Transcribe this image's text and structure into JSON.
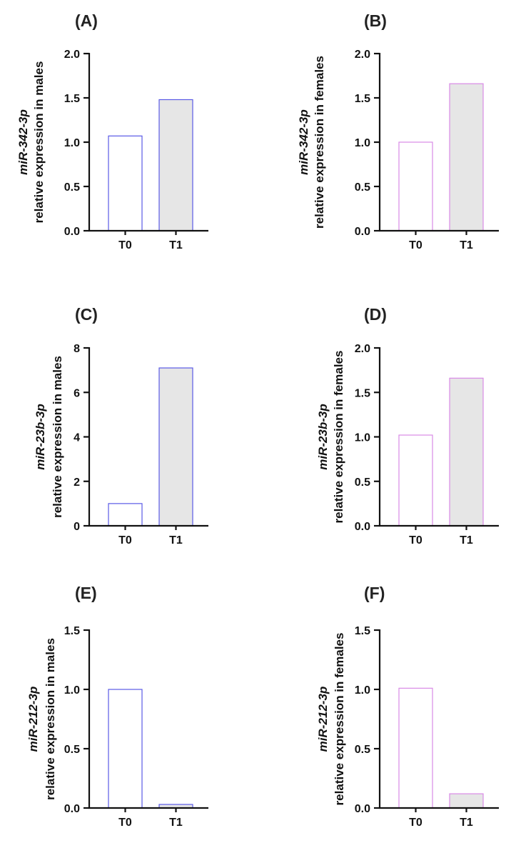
{
  "chart_data": [
    {
      "type": "bar",
      "panel": "(A)",
      "ylabel_gene": "miR-342-3p",
      "ylabel_desc": "relative expression in males",
      "categories": [
        "T0",
        "T1"
      ],
      "values": [
        1.07,
        1.48
      ],
      "ylim": [
        0,
        2.0
      ],
      "yticks": [
        "0.0",
        "0.5",
        "1.0",
        "1.5",
        "2.0"
      ],
      "fills": [
        "#ffffff",
        "#e6e6e6"
      ],
      "stroke": "#5a5ae6"
    },
    {
      "type": "bar",
      "panel": "(B)",
      "ylabel_gene": "miR-342-3p",
      "ylabel_desc": "relative expression in females",
      "categories": [
        "T0",
        "T1"
      ],
      "values": [
        1.0,
        1.66
      ],
      "ylim": [
        0,
        2.0
      ],
      "yticks": [
        "0.0",
        "0.5",
        "1.0",
        "1.5",
        "2.0"
      ],
      "fills": [
        "#ffffff",
        "#e6e6e6"
      ],
      "stroke": "#d98ae6"
    },
    {
      "type": "bar",
      "panel": "(C)",
      "ylabel_gene": "miR-23b-3p",
      "ylabel_desc": "relative expression in males",
      "categories": [
        "T0",
        "T1"
      ],
      "values": [
        1.0,
        7.1
      ],
      "ylim": [
        0,
        8
      ],
      "yticks": [
        "0",
        "2",
        "4",
        "6",
        "8"
      ],
      "fills": [
        "#ffffff",
        "#e6e6e6"
      ],
      "stroke": "#5a5ae6"
    },
    {
      "type": "bar",
      "panel": "(D)",
      "ylabel_gene": "miR-23b-3p",
      "ylabel_desc": "relative expression in females",
      "categories": [
        "T0",
        "T1"
      ],
      "values": [
        1.02,
        1.66
      ],
      "ylim": [
        0,
        2.0
      ],
      "yticks": [
        "0.0",
        "0.5",
        "1.0",
        "1.5",
        "2.0"
      ],
      "fills": [
        "#ffffff",
        "#e6e6e6"
      ],
      "stroke": "#d98ae6"
    },
    {
      "type": "bar",
      "panel": "(E)",
      "ylabel_gene": "miR-212-3p",
      "ylabel_desc": "relative expression in males",
      "categories": [
        "T0",
        "T1"
      ],
      "values": [
        1.0,
        0.03
      ],
      "ylim": [
        0,
        1.5
      ],
      "yticks": [
        "0.0",
        "0.5",
        "1.0",
        "1.5"
      ],
      "fills": [
        "#ffffff",
        "#e6e6e6"
      ],
      "stroke": "#5a5ae6"
    },
    {
      "type": "bar",
      "panel": "(F)",
      "ylabel_gene": "miR-212-3p",
      "ylabel_desc": "relative expression in females",
      "categories": [
        "T0",
        "T1"
      ],
      "values": [
        1.01,
        0.12
      ],
      "ylim": [
        0,
        1.5
      ],
      "yticks": [
        "0.0",
        "0.5",
        "1.0",
        "1.5"
      ],
      "fills": [
        "#ffffff",
        "#e6e6e6"
      ],
      "stroke": "#d98ae6"
    }
  ]
}
